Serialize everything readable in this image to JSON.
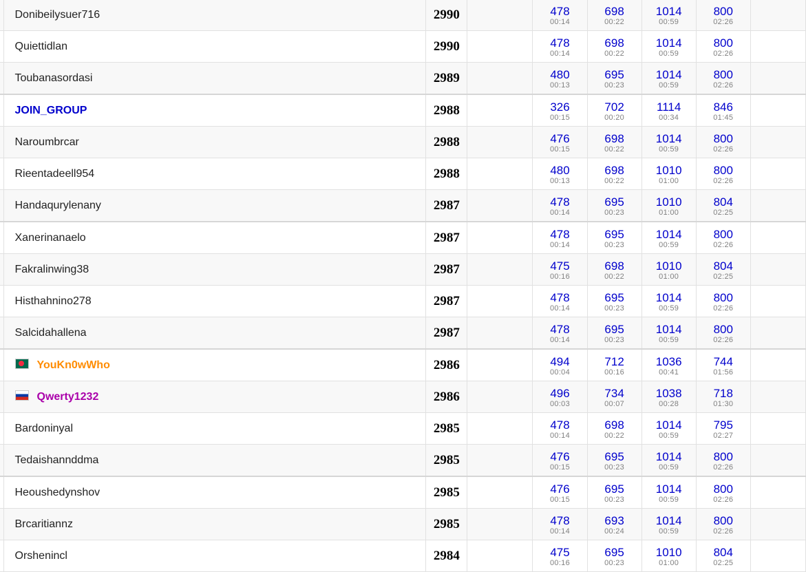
{
  "colors": {
    "score": "#0000cc",
    "time": "#808080",
    "row_alt": "#f8f8f8",
    "handle_blue": "#0000cc",
    "handle_orange": "#ff8c00",
    "handle_violet": "#aa00aa"
  },
  "rows": [
    {
      "name": "Donibeilysuer716",
      "points": "2990",
      "problems": [
        {
          "s": "478",
          "t": "00:14"
        },
        {
          "s": "698",
          "t": "00:22"
        },
        {
          "s": "1014",
          "t": "00:59"
        },
        {
          "s": "800",
          "t": "02:26"
        }
      ]
    },
    {
      "name": "Quiettidlan",
      "points": "2990",
      "problems": [
        {
          "s": "478",
          "t": "00:14"
        },
        {
          "s": "698",
          "t": "00:22"
        },
        {
          "s": "1014",
          "t": "00:59"
        },
        {
          "s": "800",
          "t": "02:26"
        }
      ]
    },
    {
      "name": "Toubanasordasi",
      "points": "2989",
      "problems": [
        {
          "s": "480",
          "t": "00:13"
        },
        {
          "s": "695",
          "t": "00:23"
        },
        {
          "s": "1014",
          "t": "00:59"
        },
        {
          "s": "800",
          "t": "02:26"
        }
      ]
    },
    {
      "name": "JOIN_GROUP",
      "points": "2988",
      "problems": [
        {
          "s": "326",
          "t": "00:15"
        },
        {
          "s": "702",
          "t": "00:20"
        },
        {
          "s": "1114",
          "t": "00:34"
        },
        {
          "s": "846",
          "t": "01:45"
        }
      ]
    },
    {
      "name": "Naroumbrcar",
      "points": "2988",
      "problems": [
        {
          "s": "476",
          "t": "00:15"
        },
        {
          "s": "698",
          "t": "00:22"
        },
        {
          "s": "1014",
          "t": "00:59"
        },
        {
          "s": "800",
          "t": "02:26"
        }
      ]
    },
    {
      "name": "Rieentadeell954",
      "points": "2988",
      "problems": [
        {
          "s": "480",
          "t": "00:13"
        },
        {
          "s": "698",
          "t": "00:22"
        },
        {
          "s": "1010",
          "t": "01:00"
        },
        {
          "s": "800",
          "t": "02:26"
        }
      ]
    },
    {
      "name": "Handaqurylenany",
      "points": "2987",
      "problems": [
        {
          "s": "478",
          "t": "00:14"
        },
        {
          "s": "695",
          "t": "00:23"
        },
        {
          "s": "1010",
          "t": "01:00"
        },
        {
          "s": "804",
          "t": "02:25"
        }
      ]
    },
    {
      "name": "Xanerinanaelo",
      "points": "2987",
      "problems": [
        {
          "s": "478",
          "t": "00:14"
        },
        {
          "s": "695",
          "t": "00:23"
        },
        {
          "s": "1014",
          "t": "00:59"
        },
        {
          "s": "800",
          "t": "02:26"
        }
      ]
    },
    {
      "name": "Fakralinwing38",
      "points": "2987",
      "problems": [
        {
          "s": "475",
          "t": "00:16"
        },
        {
          "s": "698",
          "t": "00:22"
        },
        {
          "s": "1010",
          "t": "01:00"
        },
        {
          "s": "804",
          "t": "02:25"
        }
      ]
    },
    {
      "name": "Histhahnino278",
      "points": "2987",
      "problems": [
        {
          "s": "478",
          "t": "00:14"
        },
        {
          "s": "695",
          "t": "00:23"
        },
        {
          "s": "1014",
          "t": "00:59"
        },
        {
          "s": "800",
          "t": "02:26"
        }
      ]
    },
    {
      "name": "Salcidahallena",
      "points": "2987",
      "problems": [
        {
          "s": "478",
          "t": "00:14"
        },
        {
          "s": "695",
          "t": "00:23"
        },
        {
          "s": "1014",
          "t": "00:59"
        },
        {
          "s": "800",
          "t": "02:26"
        }
      ]
    },
    {
      "name": "YouKn0wWho",
      "points": "2986",
      "problems": [
        {
          "s": "494",
          "t": "00:04"
        },
        {
          "s": "712",
          "t": "00:16"
        },
        {
          "s": "1036",
          "t": "00:41"
        },
        {
          "s": "744",
          "t": "01:56"
        }
      ]
    },
    {
      "name": "Qwerty1232",
      "points": "2986",
      "problems": [
        {
          "s": "496",
          "t": "00:03"
        },
        {
          "s": "734",
          "t": "00:07"
        },
        {
          "s": "1038",
          "t": "00:28"
        },
        {
          "s": "718",
          "t": "01:30"
        }
      ]
    },
    {
      "name": "Bardoninyal",
      "points": "2985",
      "problems": [
        {
          "s": "478",
          "t": "00:14"
        },
        {
          "s": "698",
          "t": "00:22"
        },
        {
          "s": "1014",
          "t": "00:59"
        },
        {
          "s": "795",
          "t": "02:27"
        }
      ]
    },
    {
      "name": "Tedaishannddma",
      "points": "2985",
      "problems": [
        {
          "s": "476",
          "t": "00:15"
        },
        {
          "s": "695",
          "t": "00:23"
        },
        {
          "s": "1014",
          "t": "00:59"
        },
        {
          "s": "800",
          "t": "02:26"
        }
      ]
    },
    {
      "name": "Heoushedynshov",
      "points": "2985",
      "problems": [
        {
          "s": "476",
          "t": "00:15"
        },
        {
          "s": "695",
          "t": "00:23"
        },
        {
          "s": "1014",
          "t": "00:59"
        },
        {
          "s": "800",
          "t": "02:26"
        }
      ]
    },
    {
      "name": "Brcaritiannz",
      "points": "2985",
      "problems": [
        {
          "s": "478",
          "t": "00:14"
        },
        {
          "s": "693",
          "t": "00:24"
        },
        {
          "s": "1014",
          "t": "00:59"
        },
        {
          "s": "800",
          "t": "02:26"
        }
      ]
    },
    {
      "name": "Orshenincl",
      "points": "2984",
      "problems": [
        {
          "s": "475",
          "t": "00:16"
        },
        {
          "s": "695",
          "t": "00:23"
        },
        {
          "s": "1010",
          "t": "01:00"
        },
        {
          "s": "804",
          "t": "02:25"
        }
      ]
    }
  ]
}
